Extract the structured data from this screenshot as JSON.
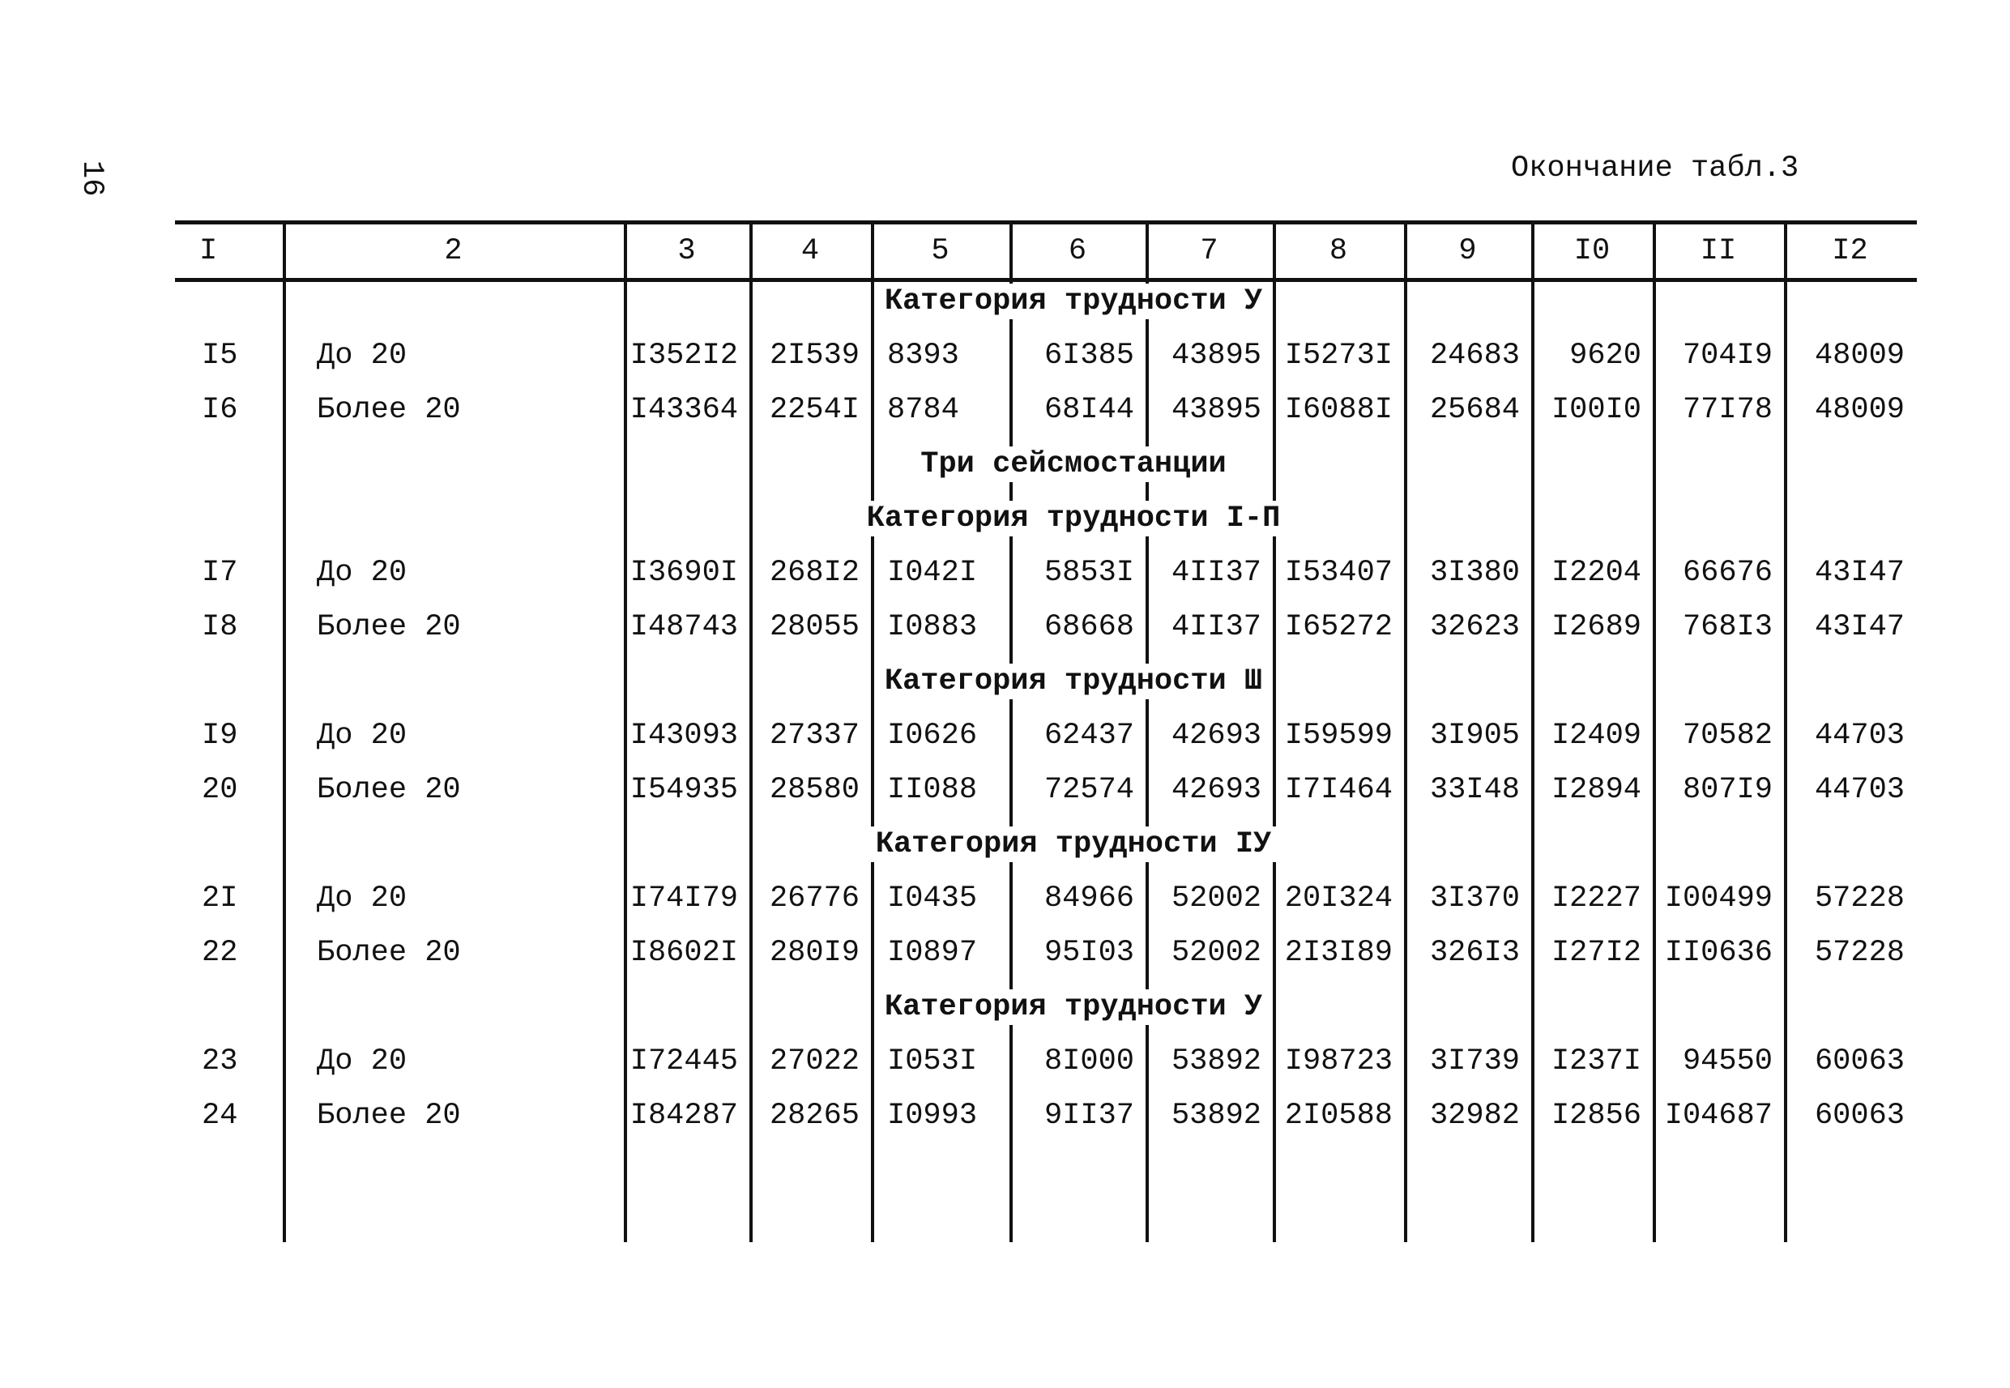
{
  "header": {
    "page_number": "16",
    "title": "Окончание табл.3"
  },
  "table": {
    "columns": [
      "I",
      "2",
      "3",
      "4",
      "5",
      "6",
      "7",
      "8",
      "9",
      "I0",
      "II",
      "I2"
    ],
    "blocks": [
      {
        "headings": [
          "Категория трудности У"
        ],
        "rows": [
          [
            "I5",
            "До 20",
            "I352I2",
            "2I539",
            "8393",
            "6I385",
            "43895",
            "I5273I",
            "24683",
            "9620",
            "704I9",
            "48009"
          ],
          [
            "I6",
            "Более 20",
            "I43364",
            "2254I",
            "8784",
            "68I44",
            "43895",
            "I6088I",
            "25684",
            "I00I0",
            "77I78",
            "48009"
          ]
        ]
      },
      {
        "headings": [
          "Три сейсмостанции",
          "Категория трудности I-П"
        ],
        "rows": [
          [
            "I7",
            "До 20",
            "I3690I",
            "268I2",
            "I042I",
            "5853I",
            "4II37",
            "I53407",
            "3I380",
            "I2204",
            "66676",
            "43I47"
          ],
          [
            "I8",
            "Более 20",
            "I48743",
            "28055",
            "I0883",
            "68668",
            "4II37",
            "I65272",
            "32623",
            "I2689",
            "768I3",
            "43I47"
          ]
        ]
      },
      {
        "headings": [
          "Категория трудности Ш"
        ],
        "rows": [
          [
            "I9",
            "До 20",
            "I43093",
            "27337",
            "I0626",
            "62437",
            "42693",
            "I59599",
            "3I905",
            "I2409",
            "70582",
            "44703"
          ],
          [
            "20",
            "Более 20",
            "I54935",
            "28580",
            "II088",
            "72574",
            "42693",
            "I7I464",
            "33I48",
            "I2894",
            "807I9",
            "44703"
          ]
        ]
      },
      {
        "headings": [
          "Категория трудности IУ"
        ],
        "rows": [
          [
            "2I",
            "До 20",
            "I74I79",
            "26776",
            "I0435",
            "84966",
            "52002",
            "20I324",
            "3I370",
            "I2227",
            "I00499",
            "57228"
          ],
          [
            "22",
            "Более 20",
            "I8602I",
            "280I9",
            "I0897",
            "95I03",
            "52002",
            "2I3I89",
            "326I3",
            "I27I2",
            "II0636",
            "57228"
          ]
        ]
      },
      {
        "headings": [
          "Категория трудности У"
        ],
        "rows": [
          [
            "23",
            "До 20",
            "I72445",
            "27022",
            "I053I",
            "8I000",
            "53892",
            "I98723",
            "3I739",
            "I237I",
            "94550",
            "60063"
          ],
          [
            "24",
            "Более 20",
            "I84287",
            "28265",
            "I0993",
            "9II37",
            "53892",
            "2I0588",
            "32982",
            "I2856",
            "I04687",
            "60063"
          ]
        ]
      }
    ]
  }
}
